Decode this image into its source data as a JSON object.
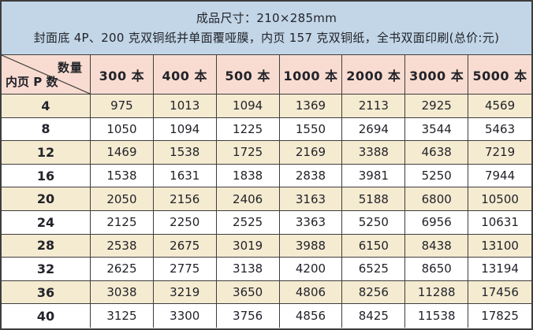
{
  "chart_data": {
    "type": "table",
    "title_lines": [
      "成品尺寸：210×285mm",
      "封面底 4P、200 克双铜纸并单面覆哑膜，内页 157 克双铜纸，全书双面印刷(总价:元)"
    ],
    "corner": {
      "column_axis_label": "数量",
      "row_axis_label": "内页 P 数"
    },
    "columns": [
      "300 本",
      "400 本",
      "500 本",
      "1000 本",
      "2000 本",
      "3000 本",
      "5000 本"
    ],
    "row_categories": [
      4,
      8,
      12,
      16,
      20,
      24,
      28,
      32,
      36,
      40
    ],
    "values": [
      [
        975,
        1013,
        1094,
        1369,
        2113,
        2925,
        4569
      ],
      [
        1050,
        1094,
        1225,
        1550,
        2694,
        3544,
        5463
      ],
      [
        1469,
        1538,
        1725,
        2169,
        3388,
        4638,
        7219
      ],
      [
        1538,
        1631,
        1838,
        2838,
        3981,
        5250,
        7944
      ],
      [
        2050,
        2156,
        2406,
        3163,
        5188,
        6800,
        10500
      ],
      [
        2125,
        2250,
        2525,
        3363,
        5250,
        6956,
        10631
      ],
      [
        2538,
        2675,
        3019,
        3988,
        6150,
        8438,
        13100
      ],
      [
        2625,
        2775,
        3138,
        4200,
        6525,
        8650,
        13194
      ],
      [
        3038,
        3219,
        3650,
        4806,
        8256,
        11288,
        17456
      ],
      [
        3125,
        3300,
        3756,
        4856,
        8425,
        11538,
        17825
      ]
    ],
    "layout_hints": {
      "grid": "on",
      "row_shading": "alternating cream/white starting cream",
      "header_shading": "pink",
      "title_shading": "light blue"
    }
  },
  "colors": {
    "title_bg": "#c2d6e7",
    "header_bg": "#f9dcd1",
    "row_alt_bg": "#f5ebd1",
    "row_bg": "#ffffff",
    "border": "#3d3d3d",
    "text": "#22232a"
  }
}
